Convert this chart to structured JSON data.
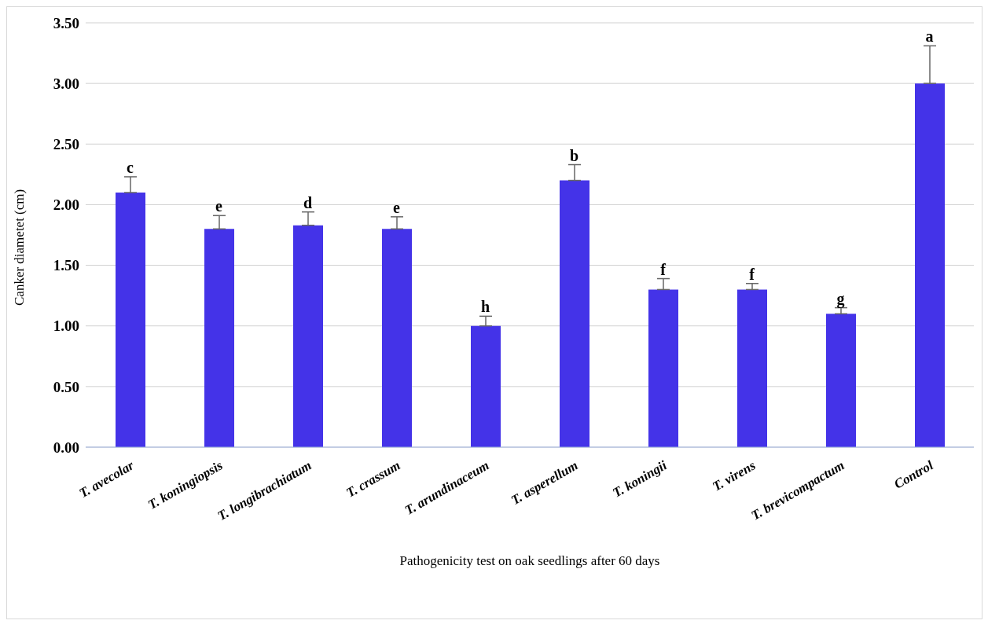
{
  "chart_data": {
    "type": "bar",
    "xlabel": "Pathogenicity test on oak seedlings after 60 days",
    "ylabel": "Canker diametet (cm)",
    "categories": [
      "T. avecolar",
      "T. koningiopsis",
      "T. longibrachiatum",
      "T. crassum",
      "T. arundinaceum",
      "T. asperellum",
      "T. koningii",
      "T. virens",
      "T. brevicompactum",
      "Control"
    ],
    "values": [
      2.1,
      1.8,
      1.83,
      1.8,
      1.0,
      2.2,
      1.3,
      1.3,
      1.1,
      3.0
    ],
    "errors": [
      [
        2.1,
        2.23
      ],
      [
        1.8,
        1.91
      ],
      [
        1.83,
        1.94
      ],
      [
        1.8,
        1.9
      ],
      [
        1.0,
        1.08
      ],
      [
        2.2,
        2.33
      ],
      [
        1.3,
        1.39
      ],
      [
        1.3,
        1.35
      ],
      [
        1.1,
        1.15
      ],
      [
        3.0,
        3.31
      ]
    ],
    "color": "#4433e8",
    "ylim": [
      0,
      3.5
    ],
    "yticks": [
      {
        "value": 0,
        "label": "0.00"
      },
      {
        "value": 0.5,
        "label": "0.50"
      },
      {
        "value": 1,
        "label": "1.00"
      },
      {
        "value": 1.5,
        "label": "1.50"
      },
      {
        "value": 2,
        "label": "2.00"
      },
      {
        "value": 2.5,
        "label": "2.50"
      },
      {
        "value": 3,
        "label": "3.00"
      },
      {
        "value": 3.5,
        "label": "3.50"
      }
    ],
    "grid": "y",
    "annotations": [
      {
        "text": "c",
        "x": "T. avecolar",
        "y": 2.23
      },
      {
        "text": "e",
        "x": "T. koningiopsis",
        "y": 1.91
      },
      {
        "text": "d",
        "x": "T. longibrachiatum",
        "y": 1.94
      },
      {
        "text": "e",
        "x": "T. crassum",
        "y": 1.9
      },
      {
        "text": "h",
        "x": "T. arundinaceum",
        "y": 1.08
      },
      {
        "text": "b",
        "x": "T. asperellum",
        "y": 2.33
      },
      {
        "text": "f",
        "x": "T. koningii",
        "y": 1.39
      },
      {
        "text": "f",
        "x": "T. virens",
        "y": 1.35
      },
      {
        "text": "g",
        "x": "T. brevicompactum",
        "y": 1.15
      },
      {
        "text": "a",
        "x": "Control",
        "y": 3.31
      }
    ]
  }
}
